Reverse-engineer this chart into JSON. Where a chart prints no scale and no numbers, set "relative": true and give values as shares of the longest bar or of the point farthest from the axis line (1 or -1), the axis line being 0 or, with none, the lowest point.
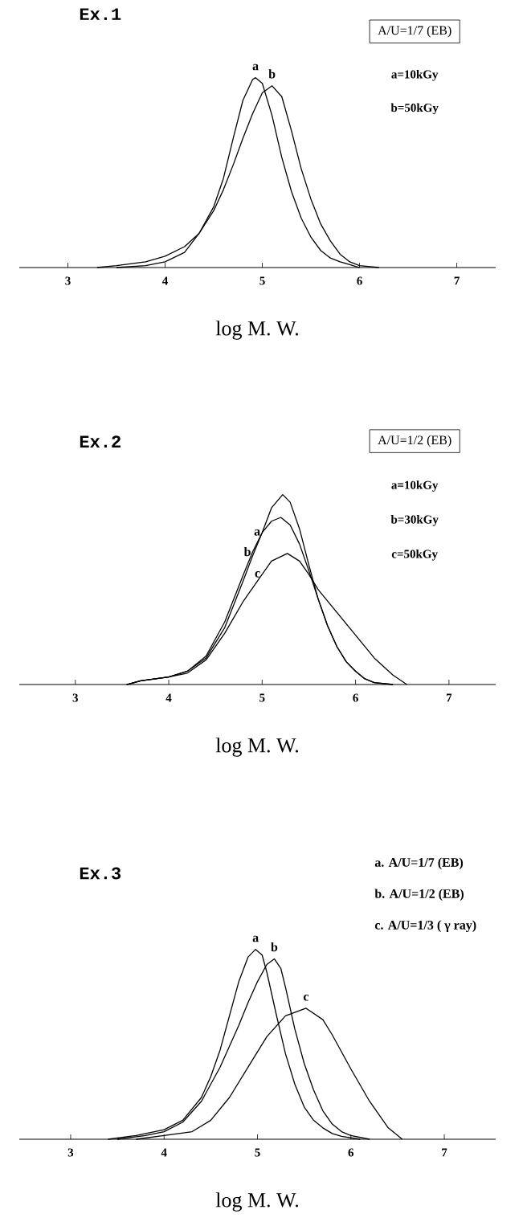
{
  "chart_data": [
    {
      "type": "line",
      "title": "Ex.1",
      "xlabel": "log M. W.",
      "relative": true,
      "xlim": [
        2.5,
        7.4
      ],
      "xticks": [
        3,
        4,
        5,
        6,
        7
      ],
      "annotations": [
        "A/U=1/7 (EB)",
        "a=10kGy",
        "b=50kGy"
      ],
      "series": [
        {
          "name": "a",
          "color": "#000000",
          "x": [
            3.3,
            3.5,
            3.8,
            4.0,
            4.2,
            4.35,
            4.5,
            4.6,
            4.7,
            4.8,
            4.9,
            4.93,
            5.0,
            5.1,
            5.2,
            5.3,
            5.4,
            5.5,
            5.6,
            5.7,
            5.8,
            5.9,
            6.0
          ],
          "values": [
            0,
            0.01,
            0.03,
            0.06,
            0.11,
            0.18,
            0.32,
            0.47,
            0.68,
            0.88,
            0.99,
            1.0,
            0.97,
            0.8,
            0.58,
            0.4,
            0.26,
            0.16,
            0.09,
            0.05,
            0.03,
            0.015,
            0
          ]
        },
        {
          "name": "b",
          "color": "#000000",
          "x": [
            3.5,
            3.8,
            4.0,
            4.2,
            4.35,
            4.5,
            4.6,
            4.7,
            4.8,
            4.9,
            5.0,
            5.1,
            5.2,
            5.3,
            5.4,
            5.5,
            5.6,
            5.7,
            5.8,
            5.9,
            6.0,
            6.2
          ],
          "values": [
            0,
            0.01,
            0.03,
            0.08,
            0.18,
            0.3,
            0.41,
            0.54,
            0.68,
            0.81,
            0.92,
            0.957,
            0.9,
            0.72,
            0.52,
            0.36,
            0.23,
            0.14,
            0.07,
            0.03,
            0.01,
            0
          ]
        }
      ]
    },
    {
      "type": "line",
      "title": "Ex.2",
      "xlabel": "log M. W.",
      "relative": true,
      "xlim": [
        2.4,
        7.5
      ],
      "xticks": [
        3,
        4,
        5,
        6,
        7
      ],
      "annotations": [
        "A/U=1/2 (EB)",
        "a=10kGy",
        "b=30kGy",
        "c=50kGy"
      ],
      "series": [
        {
          "name": "a",
          "color": "#000000",
          "x": [
            3.55,
            3.7,
            4.0,
            4.2,
            4.4,
            4.6,
            4.8,
            4.9,
            5.0,
            5.1,
            5.22,
            5.3,
            5.4,
            5.5,
            5.6,
            5.7,
            5.8,
            5.9,
            6.0,
            6.1,
            6.2,
            6.4
          ],
          "values": [
            0,
            0.02,
            0.04,
            0.07,
            0.14,
            0.3,
            0.55,
            0.68,
            0.8,
            0.93,
            1.0,
            0.96,
            0.82,
            0.63,
            0.45,
            0.31,
            0.2,
            0.12,
            0.07,
            0.03,
            0.01,
            0
          ]
        },
        {
          "name": "b",
          "color": "#000000",
          "x": [
            3.55,
            3.7,
            4.0,
            4.2,
            4.4,
            4.6,
            4.8,
            4.9,
            5.0,
            5.1,
            5.2,
            5.3,
            5.4,
            5.5,
            5.6,
            5.7,
            5.8,
            5.9,
            6.0,
            6.1,
            6.2,
            6.4
          ],
          "values": [
            0,
            0.02,
            0.04,
            0.07,
            0.15,
            0.33,
            0.58,
            0.7,
            0.8,
            0.86,
            0.88,
            0.84,
            0.74,
            0.6,
            0.45,
            0.31,
            0.2,
            0.12,
            0.07,
            0.03,
            0.01,
            0
          ]
        },
        {
          "name": "c",
          "color": "#000000",
          "x": [
            3.55,
            3.7,
            4.0,
            4.2,
            4.4,
            4.6,
            4.8,
            5.0,
            5.1,
            5.27,
            5.4,
            5.5,
            5.6,
            5.8,
            6.0,
            6.2,
            6.4,
            6.55
          ],
          "values": [
            0,
            0.02,
            0.04,
            0.06,
            0.13,
            0.27,
            0.44,
            0.58,
            0.65,
            0.69,
            0.65,
            0.58,
            0.5,
            0.38,
            0.26,
            0.14,
            0.05,
            0
          ]
        }
      ]
    },
    {
      "type": "line",
      "title": "Ex.3",
      "xlabel": "log M. W.",
      "relative": true,
      "xlim": [
        2.45,
        7.55
      ],
      "xticks": [
        3,
        4,
        5,
        6,
        7
      ],
      "annotations": [
        "a. A/U=1/7 (EB)",
        "b. A/U=1/2 (EB)",
        "c. A/U=1/3 ( γ ray)"
      ],
      "series": [
        {
          "name": "a",
          "color": "#000000",
          "x": [
            3.4,
            3.7,
            4.0,
            4.2,
            4.4,
            4.5,
            4.6,
            4.7,
            4.8,
            4.9,
            4.98,
            5.05,
            5.1,
            5.2,
            5.3,
            5.4,
            5.5,
            5.6,
            5.7,
            5.8,
            5.9,
            6.1
          ],
          "values": [
            0,
            0.02,
            0.05,
            0.1,
            0.22,
            0.33,
            0.47,
            0.65,
            0.83,
            0.96,
            1.0,
            0.97,
            0.88,
            0.66,
            0.45,
            0.29,
            0.17,
            0.1,
            0.06,
            0.03,
            0.015,
            0
          ]
        },
        {
          "name": "b",
          "color": "#000000",
          "x": [
            3.5,
            3.8,
            4.0,
            4.2,
            4.4,
            4.6,
            4.8,
            4.9,
            5.0,
            5.1,
            5.18,
            5.25,
            5.3,
            5.4,
            5.5,
            5.6,
            5.7,
            5.8,
            5.9,
            6.0,
            6.2
          ],
          "values": [
            0,
            0.02,
            0.04,
            0.09,
            0.2,
            0.38,
            0.6,
            0.72,
            0.83,
            0.92,
            0.95,
            0.9,
            0.8,
            0.58,
            0.4,
            0.26,
            0.15,
            0.08,
            0.04,
            0.02,
            0
          ]
        },
        {
          "name": "c",
          "color": "#000000",
          "x": [
            3.7,
            4.0,
            4.3,
            4.5,
            4.7,
            4.9,
            5.1,
            5.3,
            5.52,
            5.7,
            5.8,
            6.0,
            6.2,
            6.4,
            6.55
          ],
          "values": [
            0,
            0.02,
            0.04,
            0.1,
            0.22,
            0.38,
            0.54,
            0.65,
            0.69,
            0.63,
            0.55,
            0.37,
            0.2,
            0.06,
            0
          ]
        }
      ]
    }
  ]
}
